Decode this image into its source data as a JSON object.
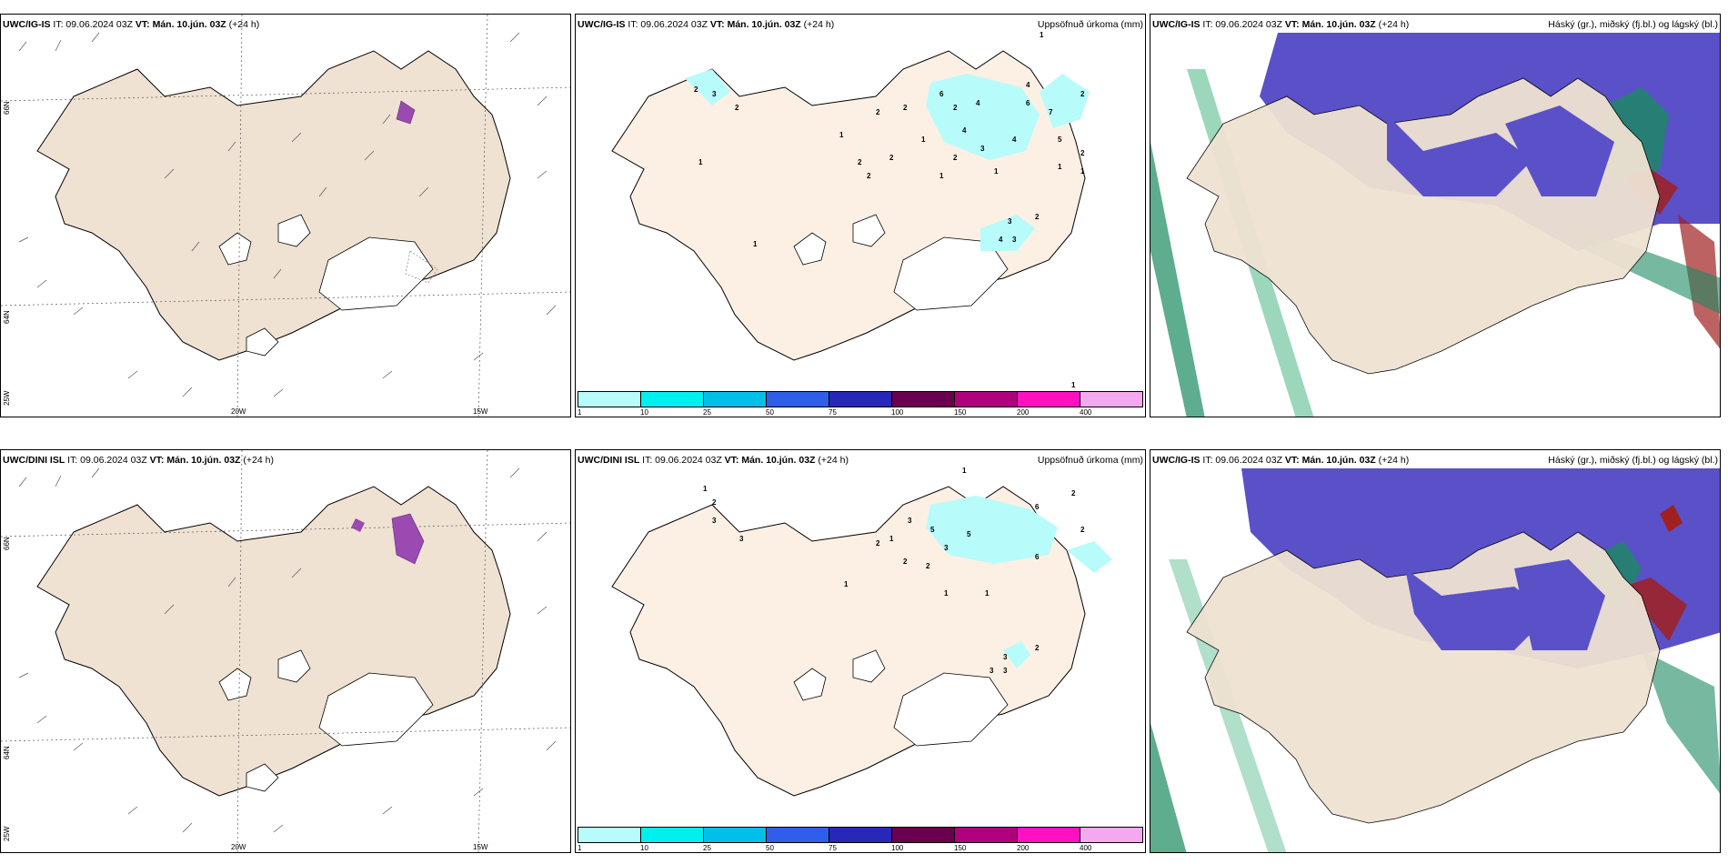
{
  "rows": [
    {
      "model": "UWC/IG-IS",
      "it": "IT: 09.06.2024 03Z",
      "vt": "VT: Mán. 10.jún. 03Z",
      "lead": "(+24 h)",
      "wind_header_wrapped": "h)"
    },
    {
      "model": "UWC/DINI ISL",
      "it": "IT: 09.06.2024 03Z",
      "vt": "VT: Mán. 10.jún. 03Z",
      "lead": "(+24 h)",
      "wind_header_wrapped": ""
    }
  ],
  "precip_title": "Uppsöfnuð úrkoma (mm)",
  "cloud_title": "Háský (gr.), miðský (fj.bl.) og lágský (bl.)",
  "lat_labels": {
    "north": "66N",
    "south": "64N",
    "far": "25W"
  },
  "lon_labels": [
    "20W",
    "15W"
  ],
  "colorbar": {
    "ticks": [
      "1",
      "10",
      "25",
      "50",
      "75",
      "100",
      "150",
      "200",
      "400"
    ],
    "colors": [
      "#b8fbfb",
      "#00f0f0",
      "#00bfe8",
      "#2f5fe8",
      "#2828b8",
      "#6a0050",
      "#b0007e",
      "#ff10c0",
      "#f4a8f0"
    ]
  },
  "precip_numbers_top": [
    "2",
    "3",
    "2",
    "1",
    "1",
    "6",
    "4",
    "4",
    "6",
    "7",
    "2",
    "2",
    "2",
    "1",
    "4",
    "2",
    "3",
    "4",
    "5",
    "2",
    "1",
    "2",
    "2",
    "2",
    "3",
    "1",
    "2",
    "1",
    "1",
    "4",
    "3",
    "2",
    "1",
    "1",
    "1"
  ],
  "precip_numbers_bottom": [
    "1",
    "1",
    "2",
    "3",
    "3",
    "2",
    "1",
    "3",
    "5",
    "5",
    "6",
    "2",
    "6",
    "2",
    "2",
    "2",
    "3",
    "1",
    "1",
    "1",
    "2",
    "3",
    "3",
    "3"
  ],
  "colors": {
    "land": "#efe2d2",
    "precip_light": "#b8fbfb",
    "cloud_high": "#5a50c8",
    "cloud_green": "#1a8a60",
    "cloud_red": "#a02020"
  }
}
